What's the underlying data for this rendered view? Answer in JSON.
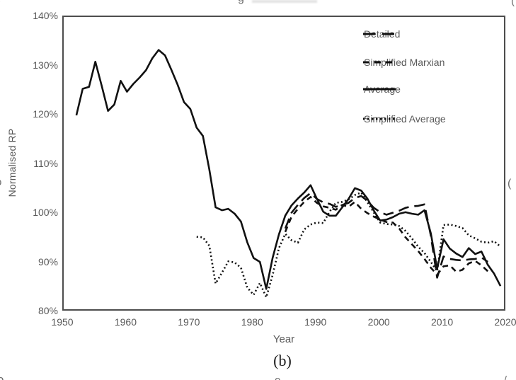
{
  "figure": {
    "panel_label": "(b)",
    "y_axis": {
      "title": "Normalised RP",
      "ticks": [
        "140%",
        "130%",
        "120%",
        "110%",
        "100%",
        "90%",
        "80%"
      ]
    },
    "x_axis": {
      "title": "Year",
      "ticks": [
        "1950",
        "1960",
        "1970",
        "1980",
        "1990",
        "2000",
        "2010",
        "2020"
      ]
    }
  },
  "chart_data": {
    "type": "line",
    "title": "",
    "xlabel": "Year",
    "ylabel": "Normalised RP",
    "xlim": [
      1950,
      2020
    ],
    "ylim": [
      "80%",
      "140%"
    ],
    "grid": false,
    "legend_position": "inside-top-right",
    "legend_entries": [
      "Detailed",
      "Simplified Marxian",
      "Average",
      "Simplified Average"
    ],
    "series": [
      {
        "name": "Detailed",
        "style": "long-dash",
        "x": [
          1985,
          1986,
          1987,
          1988,
          1989,
          1990,
          1991,
          1992,
          1993,
          1994,
          1995,
          1996,
          1997,
          1998,
          1999,
          2000,
          2001,
          2002,
          2003,
          2004,
          2005,
          2006,
          2007,
          2008,
          2009,
          2010,
          2011,
          2012,
          2013,
          2014,
          2015,
          2016,
          2017
        ],
        "y_pct": [
          97.0,
          100.2,
          101.8,
          103.2,
          104.2,
          103.0,
          102.3,
          102.0,
          101.4,
          101.8,
          102.2,
          103.2,
          103.6,
          102.6,
          101.2,
          100.3,
          99.8,
          100.2,
          100.6,
          101.2,
          101.5,
          101.6,
          101.9,
          95.5,
          87.0,
          91.3,
          90.8,
          90.6,
          90.5,
          90.7,
          90.8,
          91.1,
          90.2
        ]
      },
      {
        "name": "Simplified Marxian",
        "style": "dash",
        "x": [
          1985,
          1986,
          1987,
          1988,
          1989,
          1990,
          1991,
          1992,
          1993,
          1994,
          1995,
          1996,
          1997,
          1998,
          1999,
          2000,
          2001,
          2002,
          2003,
          2004,
          2005,
          2006,
          2007,
          2008,
          2009,
          2010,
          2011,
          2012,
          2013,
          2014,
          2015,
          2016,
          2017
        ],
        "y_pct": [
          96.3,
          99.4,
          101.0,
          102.4,
          103.4,
          102.2,
          101.5,
          101.2,
          100.8,
          101.8,
          101.4,
          102.4,
          101.0,
          100.1,
          99.4,
          98.8,
          98.3,
          98.2,
          97.0,
          95.2,
          93.8,
          92.4,
          90.8,
          89.0,
          87.6,
          89.3,
          89.5,
          88.2,
          88.6,
          89.9,
          90.4,
          89.5,
          88.3
        ]
      },
      {
        "name": "Average",
        "style": "solid",
        "x": [
          1952,
          1953,
          1954,
          1955,
          1956,
          1957,
          1958,
          1959,
          1960,
          1961,
          1962,
          1963,
          1964,
          1965,
          1966,
          1967,
          1968,
          1969,
          1970,
          1971,
          1972,
          1973,
          1974,
          1975,
          1976,
          1977,
          1978,
          1979,
          1980,
          1981,
          1982,
          1983,
          1984,
          1985,
          1986,
          1987,
          1988,
          1989,
          1990,
          1991,
          1992,
          1993,
          1994,
          1995,
          1996,
          1997,
          1998,
          1999,
          2000,
          2001,
          2002,
          2003,
          2004,
          2005,
          2006,
          2007,
          2008,
          2009,
          2010,
          2011,
          2012,
          2013,
          2014,
          2015,
          2016,
          2017,
          2018,
          2019
        ],
        "y_pct": [
          120.0,
          125.4,
          125.8,
          130.9,
          126.0,
          120.9,
          122.2,
          127.0,
          124.8,
          126.4,
          127.7,
          129.2,
          131.6,
          133.3,
          132.2,
          129.3,
          126.2,
          122.7,
          121.3,
          117.5,
          115.8,
          109.0,
          101.3,
          100.7,
          101.0,
          100.0,
          98.4,
          94.2,
          91.0,
          90.2,
          84.7,
          91.0,
          95.8,
          99.6,
          101.7,
          103.1,
          104.3,
          105.8,
          103.0,
          100.4,
          99.6,
          99.6,
          101.3,
          103.0,
          105.2,
          104.7,
          103.0,
          100.6,
          98.6,
          98.8,
          99.3,
          100.0,
          100.3,
          100.0,
          99.8,
          100.7,
          96.0,
          88.8,
          94.8,
          92.9,
          91.9,
          91.2,
          93.0,
          91.8,
          92.3,
          89.6,
          87.8,
          85.3
        ]
      },
      {
        "name": "Simplified Average",
        "style": "dotted",
        "x": [
          1971,
          1972,
          1973,
          1974,
          1975,
          1976,
          1977,
          1978,
          1979,
          1980,
          1981,
          1982,
          1983,
          1984,
          1985,
          1986,
          1987,
          1988,
          1989,
          1990,
          1991,
          1992,
          1993,
          1994,
          1995,
          1996,
          1997,
          1998,
          1999,
          2000,
          2001,
          2002,
          2003,
          2004,
          2005,
          2006,
          2007,
          2008,
          2009,
          2010,
          2011,
          2012,
          2013,
          2014,
          2015,
          2016,
          2017,
          2018,
          2019
        ],
        "y_pct": [
          95.3,
          95.2,
          93.5,
          85.8,
          88.0,
          90.3,
          90.1,
          89.0,
          85.0,
          83.5,
          85.9,
          83.0,
          87.5,
          93.0,
          95.9,
          94.6,
          94.1,
          96.8,
          97.8,
          98.2,
          98.1,
          100.4,
          102.2,
          102.4,
          102.9,
          103.8,
          104.3,
          102.3,
          100.2,
          98.2,
          97.9,
          97.8,
          97.5,
          96.5,
          95.0,
          93.3,
          92.0,
          90.2,
          88.3,
          97.7,
          97.8,
          97.5,
          97.1,
          95.6,
          95.0,
          94.3,
          94.1,
          94.4,
          93.3
        ]
      }
    ]
  },
  "colors": {
    "line": "#111111",
    "axis_box": "#4d4d4d",
    "tick_label": "#595959",
    "legend_label": "#595959"
  },
  "edge_fragments": {
    "top_left": ")",
    "top_center": "g",
    "top_right": "(",
    "left_middle": "o",
    "right_middle": "(",
    "bottom_left": "o",
    "bottom_center": "o",
    "bottom_right": "/"
  }
}
